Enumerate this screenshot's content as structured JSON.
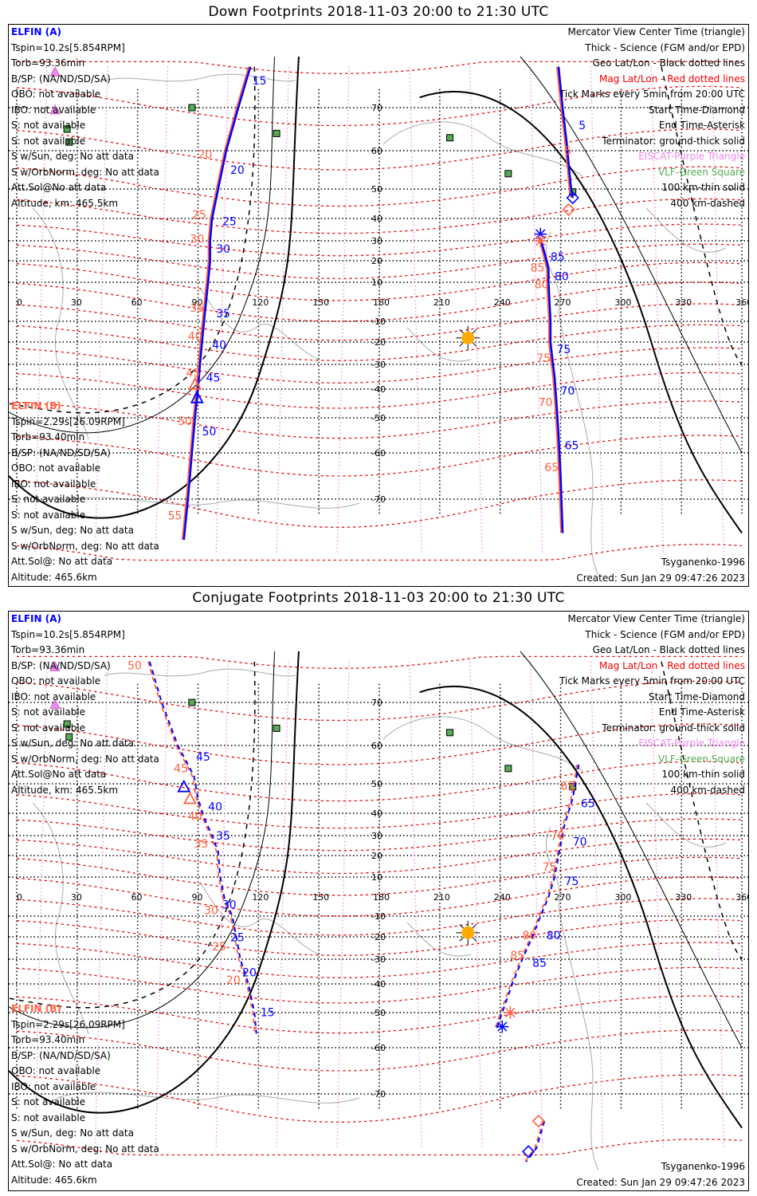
{
  "colors": {
    "elfin_a": "#0000ff",
    "elfin_b": "#ff6040",
    "geo_grid": "#000000",
    "mag_grid": "#ee0000",
    "mag_meridian": "#ee88ee",
    "eiscat": "#ee88ee",
    "vlf": "#55aa55",
    "coast": "#aaaaaa",
    "sun": "#ffaa00"
  },
  "axes": {
    "lon_labels": [
      "0",
      "30",
      "60",
      "90",
      "120",
      "150",
      "180",
      "210",
      "240",
      "270",
      "300",
      "330",
      "360"
    ],
    "lat_labels": [
      "70",
      "60",
      "50",
      "40",
      "30",
      "20",
      "10",
      "-10",
      "-20",
      "-30",
      "-40",
      "-50",
      "-60",
      "-70"
    ]
  },
  "legend_right": [
    {
      "text": "Mercator View Center Time (triangle)",
      "color": "#000000"
    },
    {
      "text": "Thick - Science (FGM and/or EPD)",
      "color": "#000000"
    },
    {
      "text": "Geo Lat/Lon - Black dotted lines",
      "color": "#000000"
    },
    {
      "text": "Mag Lat/Lon - Red dotted lines",
      "color": "#ee0000"
    },
    {
      "text": "Tick Marks every 5min from 20:00 UTC",
      "color": "#000000"
    },
    {
      "text": "Start Time-Diamond",
      "color": "#000000"
    },
    {
      "text": "End Time-Asterisk",
      "color": "#000000"
    },
    {
      "text": "Terminator: ground-thick solid",
      "color": "#000000"
    },
    {
      "text": "EISCAT-Purple Triangle",
      "color": "#ee88ee"
    },
    {
      "text": "VLF-Green Square",
      "color": "#55aa55"
    },
    {
      "text": "100 km-thin solid",
      "color": "#000000"
    },
    {
      "text": "400 km-dashed",
      "color": "#000000"
    }
  ],
  "elfin_a_info": {
    "header": "ELFIN (A)",
    "lines": [
      "Tspin=10.2s[5.854RPM]",
      "Torb=93.36min",
      "B/SP: (NA/ND/SD/SA)",
      "OBO: not available",
      "IBO: not available",
      "S: not available",
      "S: not available",
      "S w/Sun, deg: No att data",
      "S w/OrbNorm, deg: No att data",
      "Att.Sol@No att data",
      "Altitude, km: 465.5km"
    ]
  },
  "elfin_b_info": {
    "header": "ELFIN (B)",
    "lines": [
      "Tspin=2.29s[26.09RPM]",
      "Torb=93.40min",
      "B/SP: (NA/ND/SD/SA)",
      "OBO: not available",
      "IBO: not available",
      "S: not available",
      "S: not available",
      "S w/Sun, deg: No att data",
      "S w/OrbNorm, deg: No att data",
      "Att.Sol@: No att data",
      "Altitude: 465.6km"
    ]
  },
  "footer": {
    "model": "Tsyganenko-1996",
    "created": "Created: Sun Jan 29 09:47:26 2023"
  },
  "panels": [
    {
      "title": "Down Footprints 2018-11-03 20:00 to 21:30 UTC",
      "sun": {
        "lon": 224,
        "lat": -18
      },
      "tracks": {
        "a_west": {
          "points": [
            [
              116,
              78
            ],
            [
              110,
              70
            ],
            [
              104,
              60
            ],
            [
              100,
              50
            ],
            [
              97,
              40
            ],
            [
              96,
              30
            ],
            [
              96,
              20
            ],
            [
              95,
              10
            ],
            [
              94,
              0
            ],
            [
              93,
              -10
            ],
            [
              92,
              -20
            ],
            [
              91,
              -30
            ],
            [
              90,
              -40
            ],
            [
              88.5,
              -50
            ],
            [
              87,
              -60
            ],
            [
              85,
              -70
            ],
            [
              83,
              -76
            ]
          ],
          "ticks": [
            {
              "label": "15",
              "lon": 117,
              "lat": 74.5
            },
            {
              "label": "20",
              "lon": 106,
              "lat": 54
            },
            {
              "label": "25",
              "lon": 102,
              "lat": 37
            },
            {
              "label": "30",
              "lon": 99,
              "lat": 24
            },
            {
              "label": "35",
              "lon": 99,
              "lat": -8
            },
            {
              "label": "40",
              "lon": 97,
              "lat": -23
            },
            {
              "label": "45",
              "lon": 94,
              "lat": -37
            },
            {
              "label": "50",
              "lon": 92,
              "lat": -55
            }
          ]
        },
        "b_west": {
          "ticks": [
            {
              "label": "20",
              "lon": 90,
              "lat": 58
            },
            {
              "label": "25",
              "lon": 87,
              "lat": 40
            },
            {
              "label": "30",
              "lon": 86,
              "lat": 29
            },
            {
              "label": "35",
              "lon": 86,
              "lat": -5
            },
            {
              "label": "40",
              "lon": 85,
              "lat": -19
            },
            {
              "label": "45",
              "lon": 84,
              "lat": -35
            },
            {
              "label": "50",
              "lon": 80,
              "lat": -52
            },
            {
              "label": "55",
              "lon": 75,
              "lat": -73
            }
          ]
        },
        "a_east": {
          "points": [
            [
              269,
              78
            ],
            [
              271,
              70
            ],
            [
              273,
              62
            ],
            [
              275,
              51
            ],
            [
              276,
              47
            ]
          ],
          "ticks": [
            {
              "label": "5",
              "lon": 279,
              "lat": 65
            }
          ]
        },
        "b_east": {
          "ticks": [
            {
              "label": "5",
              "lon": 272,
              "lat": 59
            }
          ]
        },
        "a_east2": {
          "points": [
            [
              260,
              31
            ],
            [
              262,
              24
            ],
            [
              263,
              20
            ],
            [
              264,
              16
            ],
            [
              264,
              10
            ],
            [
              264.5,
              0
            ],
            [
              265,
              -10
            ],
            [
              265,
              -20
            ],
            [
              266,
              -28
            ],
            [
              267,
              -35
            ],
            [
              268,
              -45
            ],
            [
              269,
              -55
            ],
            [
              270,
              -65
            ],
            [
              271,
              -75
            ]
          ],
          "ticks": [
            {
              "label": "85",
              "lon": 265,
              "lat": 20
            },
            {
              "label": "80",
              "lon": 267,
              "lat": 11
            },
            {
              "label": "75",
              "lon": 268,
              "lat": -25
            },
            {
              "label": "70",
              "lon": 270,
              "lat": -42
            },
            {
              "label": "65",
              "lon": 272,
              "lat": -59
            }
          ]
        },
        "b_east2": {
          "ticks": [
            {
              "label": "85",
              "lon": 255,
              "lat": 15
            },
            {
              "label": "80",
              "lon": 257,
              "lat": 7
            },
            {
              "label": "75",
              "lon": 258,
              "lat": -29
            },
            {
              "label": "70",
              "lon": 259,
              "lat": -46
            },
            {
              "label": "65",
              "lon": 262,
              "lat": -64
            }
          ]
        }
      }
    },
    {
      "title": "Conjugate Footprints 2018-11-03 20:00 to 21:30 UTC",
      "sun": {
        "lon": 224,
        "lat": -18
      },
      "tracks": {
        "a_west": {
          "points": [
            [
              66,
              78
            ],
            [
              72,
              70
            ],
            [
              80,
              60
            ],
            [
              88,
              52
            ],
            [
              90,
              45
            ],
            [
              93,
              38
            ],
            [
              97,
              30
            ],
            [
              100,
              22
            ],
            [
              101,
              10
            ],
            [
              103,
              0
            ],
            [
              107,
              -10
            ],
            [
              109,
              -20
            ],
            [
              111,
              -30
            ],
            [
              115,
              -40
            ],
            [
              118,
              -50
            ],
            [
              119,
              -56
            ]
          ],
          "ticks": [
            {
              "label": "45",
              "lon": 89,
              "lat": 56
            },
            {
              "label": "40",
              "lon": 95,
              "lat": 41
            },
            {
              "label": "35",
              "lon": 99,
              "lat": 28
            },
            {
              "label": "30",
              "lon": 102,
              "lat": -6
            },
            {
              "label": "25",
              "lon": 106,
              "lat": -22
            },
            {
              "label": "20",
              "lon": 112,
              "lat": -37
            },
            {
              "label": "15",
              "lon": 121,
              "lat": -51
            }
          ]
        },
        "b_west": {
          "ticks": [
            {
              "label": "50",
              "lon": 55,
              "lat": 76.5
            },
            {
              "label": "45",
              "lon": 78,
              "lat": 53
            },
            {
              "label": "40",
              "lon": 85,
              "lat": 37
            },
            {
              "label": "35",
              "lon": 88,
              "lat": 24
            },
            {
              "label": "30",
              "lon": 93,
              "lat": -9
            },
            {
              "label": "25",
              "lon": 97,
              "lat": -26
            },
            {
              "label": "20",
              "lon": 104,
              "lat": -40
            }
          ]
        },
        "a_east": {
          "points": [
            [
              279,
              55
            ],
            [
              276,
              45
            ],
            [
              272,
              35
            ],
            [
              269,
              20
            ],
            [
              267,
              10
            ],
            [
              264,
              0
            ],
            [
              260,
              -10
            ],
            [
              256,
              -20
            ],
            [
              251,
              -30
            ],
            [
              246,
              -40
            ],
            [
              241,
              -50
            ],
            [
              238,
              -55
            ]
          ],
          "ticks": [
            {
              "label": "65",
              "lon": 280,
              "lat": 42
            },
            {
              "label": "70",
              "lon": 276,
              "lat": 25
            },
            {
              "label": "75",
              "lon": 272,
              "lat": 6
            },
            {
              "label": "80",
              "lon": 263,
              "lat": -21
            },
            {
              "label": "85",
              "lon": 256,
              "lat": -33
            }
          ]
        },
        "b_east": {
          "ticks": [
            {
              "label": "65",
              "lon": 270,
              "lat": 48
            },
            {
              "label": "70",
              "lon": 265,
              "lat": 28
            },
            {
              "label": "75",
              "lon": 261,
              "lat": 13
            },
            {
              "label": "80",
              "lon": 251,
              "lat": -21
            },
            {
              "label": "85",
              "lon": 245,
              "lat": -30
            }
          ]
        },
        "a_south": {
          "points": [
            [
              262,
              -74
            ],
            [
              258,
              -78
            ],
            [
              253,
              -82
            ]
          ]
        }
      }
    }
  ]
}
